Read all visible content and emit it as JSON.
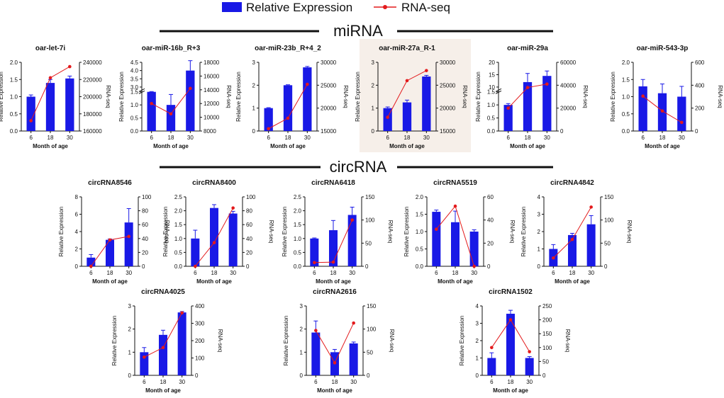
{
  "legend": {
    "bar_label": "Relative Expression",
    "line_label": "RNA-seq",
    "bar_color": "#1919e6",
    "line_color": "#e31a1c"
  },
  "sections": {
    "mirna": "miRNA",
    "circrna": "circRNA"
  },
  "highlight_color": "#f6efe9",
  "chart_data": [
    {
      "type": "bar",
      "title": "oar-let-7i",
      "categories": [
        "6",
        "18",
        "30"
      ],
      "xlabel": "Month of age",
      "ylabel": "Relative Expression",
      "y2label": "RNA-seq",
      "ylim": [
        0,
        2.0
      ],
      "yticks": [
        0,
        0.5,
        1.0,
        1.5,
        2.0
      ],
      "ytick_labels": [
        "0.0",
        "0.5",
        "1.0",
        "1.5",
        "2.0"
      ],
      "y2lim": [
        160000,
        240000
      ],
      "y2ticks": [
        160000,
        180000,
        200000,
        220000,
        240000
      ],
      "y2tick_labels": [
        "160000",
        "180000",
        "200000",
        "220000",
        "240000"
      ],
      "series": [
        {
          "name": "Relative Expression",
          "values": [
            1.0,
            1.4,
            1.53
          ],
          "errors": [
            0.05,
            0.1,
            0.07
          ]
        },
        {
          "name": "RNA-seq",
          "values": [
            172000,
            222000,
            235000
          ]
        }
      ]
    },
    {
      "type": "bar",
      "title": "oar-miR-16b_R+3",
      "categories": [
        "6",
        "18",
        "30"
      ],
      "xlabel": "Month of age",
      "ylabel": "Relative Expression",
      "y2label": "RNA-seq",
      "broken_axis": true,
      "ylim": [
        0,
        4.5
      ],
      "yticks": [
        0,
        0.5,
        1.0,
        1.5,
        3.0,
        3.5,
        4.0,
        4.5
      ],
      "ytick_labels": [
        "0.0",
        "0.5",
        "1.0",
        "1.5",
        "3.0",
        "3.5",
        "4.0",
        "4.5"
      ],
      "y2lim": [
        8000,
        18000
      ],
      "y2ticks": [
        8000,
        10000,
        12000,
        14000,
        16000,
        18000
      ],
      "y2tick_labels": [
        "8000",
        "10000",
        "12000",
        "14000",
        "16000",
        "18000"
      ],
      "series": [
        {
          "name": "Relative Expression",
          "values": [
            1.5,
            1.0,
            4.0
          ],
          "errors": [
            0.1,
            0.4,
            0.6
          ]
        },
        {
          "name": "RNA-seq",
          "values": [
            12000,
            10500,
            14200
          ]
        }
      ]
    },
    {
      "type": "bar",
      "title": "oar-miR-23b_R+4_2",
      "categories": [
        "6",
        "18",
        "30"
      ],
      "xlabel": "Month of age",
      "ylabel": "Relative Expression",
      "y2label": "RNA-seq",
      "ylim": [
        0,
        3
      ],
      "yticks": [
        0,
        1,
        2,
        3
      ],
      "ytick_labels": [
        "0",
        "1",
        "2",
        "3"
      ],
      "y2lim": [
        15000,
        30000
      ],
      "y2ticks": [
        15000,
        20000,
        25000,
        30000
      ],
      "y2tick_labels": [
        "15000",
        "20000",
        "25000",
        "30000"
      ],
      "series": [
        {
          "name": "Relative Expression",
          "values": [
            1.0,
            2.0,
            2.78
          ],
          "errors": [
            0.02,
            0.02,
            0.04
          ]
        },
        {
          "name": "RNA-seq",
          "values": [
            15500,
            17800,
            25200
          ]
        }
      ]
    },
    {
      "type": "bar",
      "title": "oar-miR-27a_R-1",
      "categories": [
        "6",
        "18",
        "30"
      ],
      "xlabel": "Month of age",
      "ylabel": "Relative Expression",
      "y2label": "RNA-seq",
      "highlighted": true,
      "ylim": [
        0,
        3
      ],
      "yticks": [
        0,
        1,
        2,
        3
      ],
      "ytick_labels": [
        "0",
        "1",
        "2",
        "3"
      ],
      "y2lim": [
        15000,
        30000
      ],
      "y2ticks": [
        15000,
        20000,
        25000,
        30000
      ],
      "y2tick_labels": [
        "15000",
        "20000",
        "25000",
        "30000"
      ],
      "series": [
        {
          "name": "Relative Expression",
          "values": [
            1.0,
            1.25,
            2.38
          ],
          "errors": [
            0.05,
            0.1,
            0.05
          ]
        },
        {
          "name": "RNA-seq",
          "values": [
            18000,
            26000,
            28200
          ]
        }
      ]
    },
    {
      "type": "bar",
      "title": "oar-miR-29a",
      "categories": [
        "6",
        "18",
        "30"
      ],
      "xlabel": "Month of age",
      "ylabel": "Relative Expression",
      "y2label": "RNA-seq",
      "broken_axis": true,
      "ylim": [
        0,
        20
      ],
      "yticks": [
        0,
        0.5,
        1.0,
        1.5,
        10,
        15,
        20
      ],
      "ytick_labels": [
        "0.0",
        "0.5",
        "1.0",
        "1.5",
        "10",
        "15",
        "20"
      ],
      "y2lim": [
        0,
        60000
      ],
      "y2ticks": [
        0,
        20000,
        40000,
        60000
      ],
      "y2tick_labels": [
        "0",
        "20000",
        "40000",
        "60000"
      ],
      "series": [
        {
          "name": "Relative Expression",
          "values": [
            1.0,
            12.0,
            14.5
          ],
          "errors": [
            0.05,
            3.5,
            2.0
          ]
        },
        {
          "name": "RNA-seq",
          "values": [
            20000,
            38000,
            41000
          ]
        }
      ]
    },
    {
      "type": "bar",
      "title": "oar-miR-543-3p",
      "categories": [
        "6",
        "18",
        "30"
      ],
      "xlabel": "Month of age",
      "ylabel": "Relative Expression",
      "y2label": "RNA-seq",
      "ylim": [
        0,
        2.0
      ],
      "yticks": [
        0,
        0.5,
        1.0,
        1.5,
        2.0
      ],
      "ytick_labels": [
        "0.0",
        "0.5",
        "1.0",
        "1.5",
        "2.0"
      ],
      "y2lim": [
        0,
        600
      ],
      "y2ticks": [
        0,
        200,
        400,
        600
      ],
      "y2tick_labels": [
        "0",
        "200",
        "400",
        "600"
      ],
      "series": [
        {
          "name": "Relative Expression",
          "values": [
            1.3,
            1.1,
            1.0
          ],
          "errors": [
            0.2,
            0.27,
            0.3
          ]
        },
        {
          "name": "RNA-seq",
          "values": [
            305,
            175,
            75
          ]
        }
      ]
    },
    {
      "type": "bar",
      "title": "circRNA8546",
      "categories": [
        "6",
        "18",
        "30"
      ],
      "xlabel": "Month of age",
      "ylabel": "Relative Expression",
      "y2label": "RNA-seq",
      "ylim": [
        0,
        8
      ],
      "yticks": [
        0,
        2,
        4,
        6,
        8
      ],
      "ytick_labels": [
        "0",
        "2",
        "4",
        "6",
        "8"
      ],
      "y2lim": [
        0,
        100
      ],
      "y2ticks": [
        0,
        20,
        40,
        60,
        80,
        100
      ],
      "y2tick_labels": [
        "0",
        "20",
        "40",
        "60",
        "80",
        "100"
      ],
      "series": [
        {
          "name": "Relative Expression",
          "values": [
            1.0,
            3.05,
            5.05
          ],
          "errors": [
            0.35,
            0.1,
            1.6
          ]
        },
        {
          "name": "RNA-seq",
          "values": [
            0,
            38,
            43
          ]
        }
      ]
    },
    {
      "type": "bar",
      "title": "circRNA8400",
      "categories": [
        "6",
        "18",
        "30"
      ],
      "xlabel": "Month of age",
      "ylabel": "Relative Expression",
      "y2label": "RNA-seq",
      "ylim": [
        0,
        2.5
      ],
      "yticks": [
        0,
        0.5,
        1.0,
        1.5,
        2.0,
        2.5
      ],
      "ytick_labels": [
        "0.0",
        "0.5",
        "1.0",
        "1.5",
        "2.0",
        "2.5"
      ],
      "y2lim": [
        0,
        100
      ],
      "y2ticks": [
        0,
        20,
        40,
        60,
        80,
        100
      ],
      "y2tick_labels": [
        "0",
        "20",
        "40",
        "60",
        "80",
        "100"
      ],
      "series": [
        {
          "name": "Relative Expression",
          "values": [
            1.0,
            2.1,
            1.9
          ],
          "errors": [
            0.3,
            0.12,
            0.08
          ]
        },
        {
          "name": "RNA-seq",
          "values": [
            0,
            34,
            84
          ]
        }
      ]
    },
    {
      "type": "bar",
      "title": "circRNA6418",
      "categories": [
        "6",
        "18",
        "30"
      ],
      "xlabel": "Month of age",
      "ylabel": "Relative Expression",
      "y2label": "RNA-seq",
      "ylim": [
        0,
        2.5
      ],
      "yticks": [
        0,
        0.5,
        1.0,
        1.5,
        2.0,
        2.5
      ],
      "ytick_labels": [
        "0.0",
        "0.5",
        "1.0",
        "1.5",
        "2.0",
        "2.5"
      ],
      "y2lim": [
        0,
        150
      ],
      "y2ticks": [
        0,
        50,
        100,
        150
      ],
      "y2tick_labels": [
        "0",
        "50",
        "100",
        "150"
      ],
      "series": [
        {
          "name": "Relative Expression",
          "values": [
            1.0,
            1.3,
            1.85
          ],
          "errors": [
            0.02,
            0.35,
            0.28
          ]
        },
        {
          "name": "RNA-seq",
          "values": [
            8,
            9,
            100
          ]
        }
      ]
    },
    {
      "type": "bar",
      "title": "circRNA5519",
      "categories": [
        "6",
        "18",
        "30"
      ],
      "xlabel": "Month of age",
      "ylabel": "Relative Expression",
      "y2label": "RNA-seq",
      "ylim": [
        0,
        2.0
      ],
      "yticks": [
        0,
        0.5,
        1.0,
        1.5,
        2.0
      ],
      "ytick_labels": [
        "0.0",
        "0.5",
        "1.0",
        "1.5",
        "2.0"
      ],
      "y2lim": [
        0,
        60
      ],
      "y2ticks": [
        0,
        20,
        40,
        60
      ],
      "y2tick_labels": [
        "0",
        "20",
        "40",
        "60"
      ],
      "series": [
        {
          "name": "Relative Expression",
          "values": [
            1.57,
            1.27,
            1.0
          ],
          "errors": [
            0.05,
            0.32,
            0.05
          ]
        },
        {
          "name": "RNA-seq",
          "values": [
            32,
            52,
            0
          ]
        }
      ]
    },
    {
      "type": "bar",
      "title": "circRNA4842",
      "categories": [
        "6",
        "18",
        "30"
      ],
      "xlabel": "Month of age",
      "ylabel": "Relative Expression",
      "y2label": "RNA-seq",
      "ylim": [
        0,
        4
      ],
      "yticks": [
        0,
        1,
        2,
        3,
        4
      ],
      "ytick_labels": [
        "0",
        "1",
        "2",
        "3",
        "4"
      ],
      "y2lim": [
        0,
        150
      ],
      "y2ticks": [
        0,
        50,
        100,
        150
      ],
      "y2tick_labels": [
        "0",
        "50",
        "100",
        "150"
      ],
      "series": [
        {
          "name": "Relative Expression",
          "values": [
            1.0,
            1.8,
            2.42
          ],
          "errors": [
            0.25,
            0.1,
            0.5
          ]
        },
        {
          "name": "RNA-seq",
          "values": [
            18,
            58,
            128
          ]
        }
      ]
    },
    {
      "type": "bar",
      "title": "circRNA4025",
      "categories": [
        "6",
        "18",
        "30"
      ],
      "xlabel": "Month of age",
      "ylabel": "Relative Expression",
      "y2label": "RNA-seq",
      "ylim": [
        0,
        3
      ],
      "yticks": [
        0,
        1,
        2,
        3
      ],
      "ytick_labels": [
        "0",
        "1",
        "2",
        "3"
      ],
      "y2lim": [
        0,
        400
      ],
      "y2ticks": [
        0,
        100,
        200,
        300,
        400
      ],
      "y2tick_labels": [
        "0",
        "100",
        "200",
        "300",
        "400"
      ],
      "series": [
        {
          "name": "Relative Expression",
          "values": [
            1.0,
            1.75,
            2.72
          ],
          "errors": [
            0.2,
            0.2,
            0.04
          ]
        },
        {
          "name": "RNA-seq",
          "values": [
            105,
            160,
            360
          ]
        }
      ]
    },
    {
      "type": "bar",
      "title": "circRNA2616",
      "categories": [
        "6",
        "18",
        "30"
      ],
      "xlabel": "Month of age",
      "ylabel": "Relative Expression",
      "y2label": "RNA-seq",
      "ylim": [
        0,
        3
      ],
      "yticks": [
        0,
        1,
        2,
        3
      ],
      "ytick_labels": [
        "0",
        "1",
        "2",
        "3"
      ],
      "y2lim": [
        0,
        150
      ],
      "y2ticks": [
        0,
        50,
        100,
        150
      ],
      "y2tick_labels": [
        "0",
        "50",
        "100",
        "150"
      ],
      "series": [
        {
          "name": "Relative Expression",
          "values": [
            1.85,
            1.0,
            1.38
          ],
          "errors": [
            0.5,
            0.12,
            0.06
          ]
        },
        {
          "name": "RNA-seq",
          "values": [
            97,
            27,
            113
          ]
        }
      ]
    },
    {
      "type": "bar",
      "title": "circRNA1502",
      "categories": [
        "6",
        "18",
        "30"
      ],
      "xlabel": "Month of age",
      "ylabel": "Relative Expression",
      "y2label": "RNA-seq",
      "ylim": [
        0,
        4
      ],
      "yticks": [
        0,
        1,
        2,
        3,
        4
      ],
      "ytick_labels": [
        "0",
        "1",
        "2",
        "3",
        "4"
      ],
      "y2lim": [
        0,
        250
      ],
      "y2ticks": [
        0,
        50,
        100,
        150,
        200,
        250
      ],
      "y2tick_labels": [
        "0",
        "50",
        "100",
        "150",
        "200",
        "250"
      ],
      "series": [
        {
          "name": "Relative Expression",
          "values": [
            1.0,
            3.55,
            1.0
          ],
          "errors": [
            0.3,
            0.2,
            0.08
          ]
        },
        {
          "name": "RNA-seq",
          "values": [
            100,
            200,
            85
          ]
        }
      ]
    }
  ]
}
